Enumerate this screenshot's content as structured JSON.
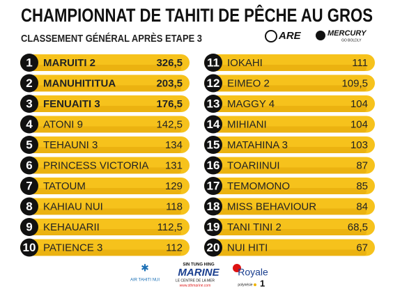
{
  "header": {
    "title": "CHAMPIONNAT DE TAHITI DE PÊCHE AU GROS",
    "subtitle": "CLASSEMENT GÉNÉRAL APRÈS ETAPE 3"
  },
  "sponsors_top": [
    "ARE",
    "MERCURY",
    "GO BOLDLY"
  ],
  "rankings": [
    {
      "rank": 1,
      "name": "MARUITI 2",
      "score": "326,5"
    },
    {
      "rank": 2,
      "name": "MANUHITITUA",
      "score": "203,5"
    },
    {
      "rank": 3,
      "name": "FENUAITI 3",
      "score": "176,5"
    },
    {
      "rank": 4,
      "name": "ATONI 9",
      "score": "142,5"
    },
    {
      "rank": 5,
      "name": "TEHAUNI 3",
      "score": "134"
    },
    {
      "rank": 6,
      "name": "PRINCESS VICTORIA",
      "score": "131"
    },
    {
      "rank": 7,
      "name": "TATOUM",
      "score": "129"
    },
    {
      "rank": 8,
      "name": "KAHIAU NUI",
      "score": "118"
    },
    {
      "rank": 9,
      "name": "KEHAUARII",
      "score": "112,5"
    },
    {
      "rank": 10,
      "name": "PATIENCE 3",
      "score": "112"
    },
    {
      "rank": 11,
      "name": "IOKAHI",
      "score": "111"
    },
    {
      "rank": 12,
      "name": "EIMEO 2",
      "score": "109,5"
    },
    {
      "rank": 13,
      "name": "MAGGY 4",
      "score": "104"
    },
    {
      "rank": 14,
      "name": "MIHIANI",
      "score": "104"
    },
    {
      "rank": 15,
      "name": "MATAHINA 3",
      "score": "103"
    },
    {
      "rank": 16,
      "name": "TOARIINUI",
      "score": "87"
    },
    {
      "rank": 17,
      "name": "TEMOMONO",
      "score": "85"
    },
    {
      "rank": 18,
      "name": "MISS BEHAVIOUR",
      "score": "84"
    },
    {
      "rank": 19,
      "name": "TANI TINI 2",
      "score": "68,5"
    },
    {
      "rank": 20,
      "name": "NUI HITI",
      "score": "67"
    }
  ],
  "sponsors_bottom": {
    "air_tahiti": "AIR TAHITI NUI",
    "marine_top": "SIN TUNG HING",
    "marine": "MARINE",
    "marine_tagline": "LE CENTRE DE LA MER",
    "marine_url": "www.sthmarine.com",
    "royale": "Royale",
    "polynesie": "polynésie",
    "polynesie_num": "1"
  }
}
